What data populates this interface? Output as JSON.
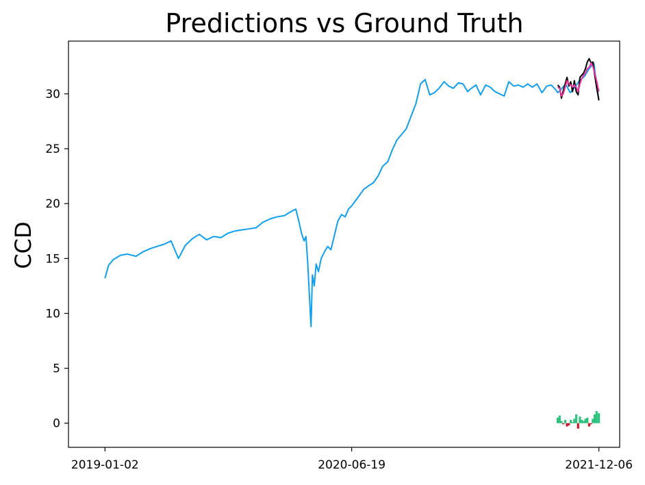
{
  "chart_data": {
    "type": "line",
    "title": "Predictions vs Ground Truth",
    "ylabel": "CCD",
    "xlabel": "",
    "ylim": [
      -2.2,
      34.8
    ],
    "yticks": [
      0,
      5,
      10,
      15,
      20,
      25,
      30
    ],
    "xlim": [
      "2018-10-15",
      "2022-01-20"
    ],
    "xticks": [
      "2019-01-02",
      "2020-06-19",
      "2021-12-06"
    ],
    "grid": false,
    "colors": {
      "history": "#0f9ff0",
      "ground_truth": "#000000",
      "prediction": "#f0309c",
      "error_positive": "#2ec27e",
      "error_negative": "#c01c28"
    },
    "series": [
      {
        "role": "history",
        "x": [
          "2019-01-02",
          "2019-01-10",
          "2019-01-20",
          "2019-02-05",
          "2019-02-20",
          "2019-03-10",
          "2019-03-25",
          "2019-04-10",
          "2019-04-25",
          "2019-05-10",
          "2019-05-25",
          "2019-06-10",
          "2019-06-25",
          "2019-07-10",
          "2019-07-25",
          "2019-08-10",
          "2019-08-25",
          "2019-09-10",
          "2019-09-25",
          "2019-10-10",
          "2019-10-25",
          "2019-11-10",
          "2019-11-25",
          "2019-12-10",
          "2019-12-25",
          "2020-01-10",
          "2020-01-25",
          "2020-02-10",
          "2020-02-19",
          "2020-02-25",
          "2020-03-03",
          "2020-03-08",
          "2020-03-12",
          "2020-03-16",
          "2020-03-19",
          "2020-03-23",
          "2020-03-26",
          "2020-03-30",
          "2020-04-03",
          "2020-04-08",
          "2020-04-14",
          "2020-04-21",
          "2020-04-28",
          "2020-05-05",
          "2020-05-12",
          "2020-05-20",
          "2020-05-28",
          "2020-06-05",
          "2020-06-12",
          "2020-06-19",
          "2020-06-26",
          "2020-07-05",
          "2020-07-15",
          "2020-07-25",
          "2020-08-05",
          "2020-08-15",
          "2020-08-25",
          "2020-09-05",
          "2020-09-15",
          "2020-09-25",
          "2020-10-05",
          "2020-10-15",
          "2020-10-25",
          "2020-11-05",
          "2020-11-15",
          "2020-11-25",
          "2020-12-05",
          "2020-12-15",
          "2020-12-25",
          "2021-01-05",
          "2021-01-15",
          "2021-01-25",
          "2021-02-05",
          "2021-02-15",
          "2021-02-25",
          "2021-03-05",
          "2021-03-15",
          "2021-03-25",
          "2021-04-05",
          "2021-04-15",
          "2021-04-25",
          "2021-05-05",
          "2021-05-15",
          "2021-05-25",
          "2021-06-05",
          "2021-06-15",
          "2021-06-25",
          "2021-07-05",
          "2021-07-15",
          "2021-07-25",
          "2021-08-05",
          "2021-08-15",
          "2021-08-25",
          "2021-09-05",
          "2021-09-08",
          "2021-09-15",
          "2021-09-25",
          "2021-10-05",
          "2021-10-15",
          "2021-10-25",
          "2021-11-05",
          "2021-11-15",
          "2021-11-25",
          "2021-12-06"
        ],
        "values": [
          13.2,
          14.4,
          14.9,
          15.3,
          15.4,
          15.2,
          15.6,
          15.9,
          16.1,
          16.3,
          16.6,
          15.0,
          16.2,
          16.8,
          17.2,
          16.7,
          17.0,
          16.9,
          17.3,
          17.5,
          17.6,
          17.7,
          17.8,
          18.3,
          18.6,
          18.8,
          18.9,
          19.3,
          19.5,
          18.5,
          17.2,
          16.6,
          17.0,
          14.5,
          12.0,
          8.8,
          13.5,
          12.5,
          14.5,
          13.8,
          15.0,
          15.6,
          16.1,
          15.8,
          17.0,
          18.4,
          19.0,
          18.8,
          19.5,
          19.8,
          20.2,
          20.7,
          21.3,
          21.6,
          21.9,
          22.5,
          23.4,
          23.8,
          24.9,
          25.8,
          26.3,
          26.8,
          27.9,
          29.1,
          30.9,
          31.3,
          29.9,
          30.1,
          30.5,
          31.1,
          30.7,
          30.5,
          31.0,
          30.9,
          30.2,
          30.5,
          30.8,
          29.9,
          30.8,
          30.6,
          30.2,
          30.0,
          29.8,
          31.1,
          30.7,
          30.8,
          30.6,
          30.9,
          30.6,
          30.9,
          30.1,
          30.7,
          30.8,
          30.3,
          30.1,
          30.4,
          30.9,
          30.1,
          30.6,
          31.2,
          31.6,
          32.3,
          32.8,
          29.4
        ]
      },
      {
        "role": "ground_truth",
        "x": [
          "2021-09-08",
          "2021-09-12",
          "2021-09-16",
          "2021-09-20",
          "2021-09-24",
          "2021-09-28",
          "2021-10-02",
          "2021-10-06",
          "2021-10-10",
          "2021-10-14",
          "2021-10-18",
          "2021-10-22",
          "2021-10-26",
          "2021-10-30",
          "2021-11-03",
          "2021-11-07",
          "2021-11-11",
          "2021-11-15",
          "2021-11-19",
          "2021-11-23",
          "2021-11-27",
          "2021-12-01",
          "2021-12-06"
        ],
        "values": [
          30.8,
          30.6,
          29.6,
          30.3,
          30.9,
          31.5,
          30.7,
          31.1,
          30.2,
          31.2,
          30.2,
          29.9,
          31.5,
          31.7,
          31.9,
          32.3,
          32.9,
          33.2,
          32.8,
          32.9,
          31.7,
          30.6,
          29.4
        ]
      },
      {
        "role": "prediction",
        "x": [
          "2021-09-08",
          "2021-09-12",
          "2021-09-16",
          "2021-09-20",
          "2021-09-24",
          "2021-09-28",
          "2021-10-02",
          "2021-10-06",
          "2021-10-10",
          "2021-10-14",
          "2021-10-18",
          "2021-10-22",
          "2021-10-26",
          "2021-10-30",
          "2021-11-03",
          "2021-11-07",
          "2021-11-11",
          "2021-11-15",
          "2021-11-19",
          "2021-11-23",
          "2021-11-27",
          "2021-12-01",
          "2021-12-06"
        ],
        "values": [
          30.6,
          30.5,
          29.8,
          30.0,
          30.6,
          31.2,
          30.9,
          30.8,
          30.6,
          30.8,
          30.6,
          30.2,
          30.9,
          31.4,
          31.7,
          31.9,
          32.3,
          32.4,
          32.8,
          32.5,
          31.9,
          31.2,
          30.2
        ]
      },
      {
        "role": "error",
        "x": [
          "2021-09-08",
          "2021-09-12",
          "2021-09-16",
          "2021-09-20",
          "2021-09-24",
          "2021-09-28",
          "2021-10-02",
          "2021-10-06",
          "2021-10-10",
          "2021-10-14",
          "2021-10-18",
          "2021-10-22",
          "2021-10-26",
          "2021-10-30",
          "2021-11-03",
          "2021-11-07",
          "2021-11-11",
          "2021-11-15",
          "2021-11-19",
          "2021-11-23",
          "2021-11-27",
          "2021-12-01",
          "2021-12-06"
        ],
        "values": [
          0.5,
          0.7,
          0.2,
          -0.1,
          0.3,
          -0.3,
          -0.2,
          0.3,
          0.1,
          0.4,
          0.8,
          -0.5,
          0.6,
          0.3,
          0.2,
          0.4,
          0.5,
          -0.3,
          -0.1,
          0.4,
          0.8,
          1.1,
          0.9
        ]
      }
    ]
  }
}
